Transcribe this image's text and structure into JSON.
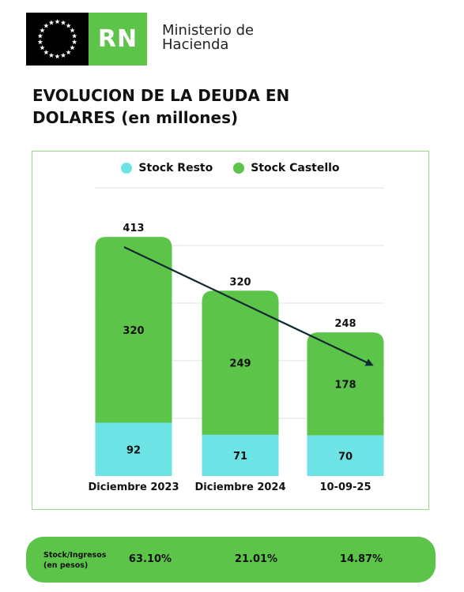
{
  "header": {
    "logo_text": "RN",
    "ministry_line1": "Ministerio de",
    "ministry_line2": "Hacienda"
  },
  "colors": {
    "resto": "#6de3e6",
    "castello": "#5cc448",
    "trend_arrow": "#0e2a33"
  },
  "chart_data": {
    "type": "bar",
    "stacked": true,
    "title": "EVOLUCION DE LA DEUDA EN DOLARES (en millones)",
    "categories": [
      "Diciembre 2023",
      "Diciembre 2024",
      "10-09-25"
    ],
    "series": [
      {
        "name": "Stock Resto",
        "values": [
          92,
          71,
          70
        ]
      },
      {
        "name": "Stock Castello",
        "values": [
          320,
          249,
          178
        ]
      }
    ],
    "totals": [
      413,
      320,
      248
    ],
    "legend_position": "top",
    "grid": true,
    "trend_arrow": true
  },
  "ratios": {
    "label_line1": "Stock/Ingresos",
    "label_line2": "(en pesos)",
    "values": [
      "63.10%",
      "21.01%",
      "14.87%"
    ]
  }
}
